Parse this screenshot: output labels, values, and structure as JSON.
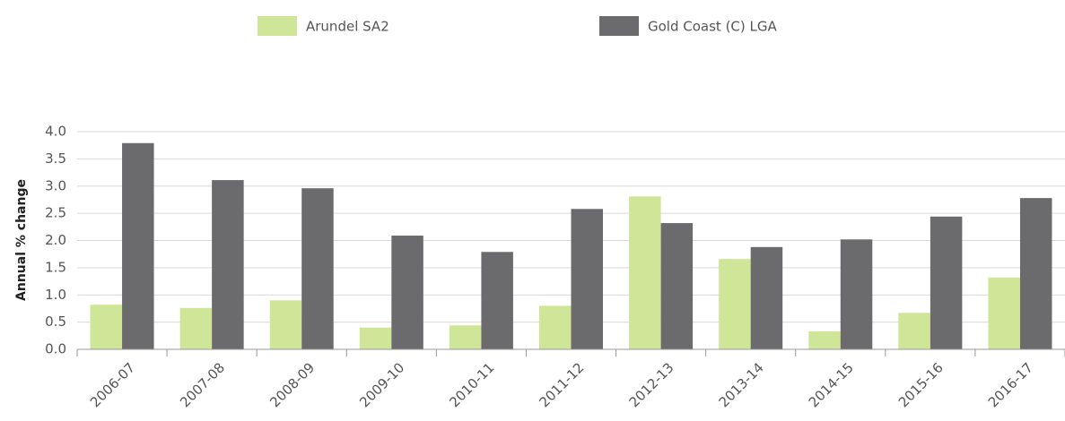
{
  "chart_data": {
    "type": "bar",
    "categories": [
      "2006-07",
      "2007-08",
      "2008-09",
      "2009-10",
      "2010-11",
      "2011-12",
      "2012-13",
      "2013-14",
      "2014-15",
      "2015-16",
      "2016-17"
    ],
    "series": [
      {
        "name": "Arundel SA2",
        "color": "#cfe597",
        "values": [
          0.82,
          0.76,
          0.9,
          0.4,
          0.44,
          0.8,
          2.81,
          1.66,
          0.33,
          0.67,
          1.32
        ]
      },
      {
        "name": "Gold Coast (C) LGA",
        "color": "#6b6b6d",
        "values": [
          3.79,
          3.11,
          2.96,
          2.09,
          1.79,
          2.58,
          2.32,
          1.88,
          2.02,
          2.44,
          2.78
        ]
      }
    ],
    "y_label": "Annual % change",
    "ylim": [
      0,
      4
    ],
    "yticks": [
      {
        "value": 0,
        "label": "0.0"
      },
      0.5,
      {
        "value": 1,
        "label": "1.0"
      },
      1.5,
      {
        "value": 2,
        "label": "2.0"
      },
      2.5,
      {
        "value": 3,
        "label": "3.0"
      },
      3.5,
      {
        "value": 4,
        "label": "4.0"
      }
    ],
    "grid": true
  }
}
